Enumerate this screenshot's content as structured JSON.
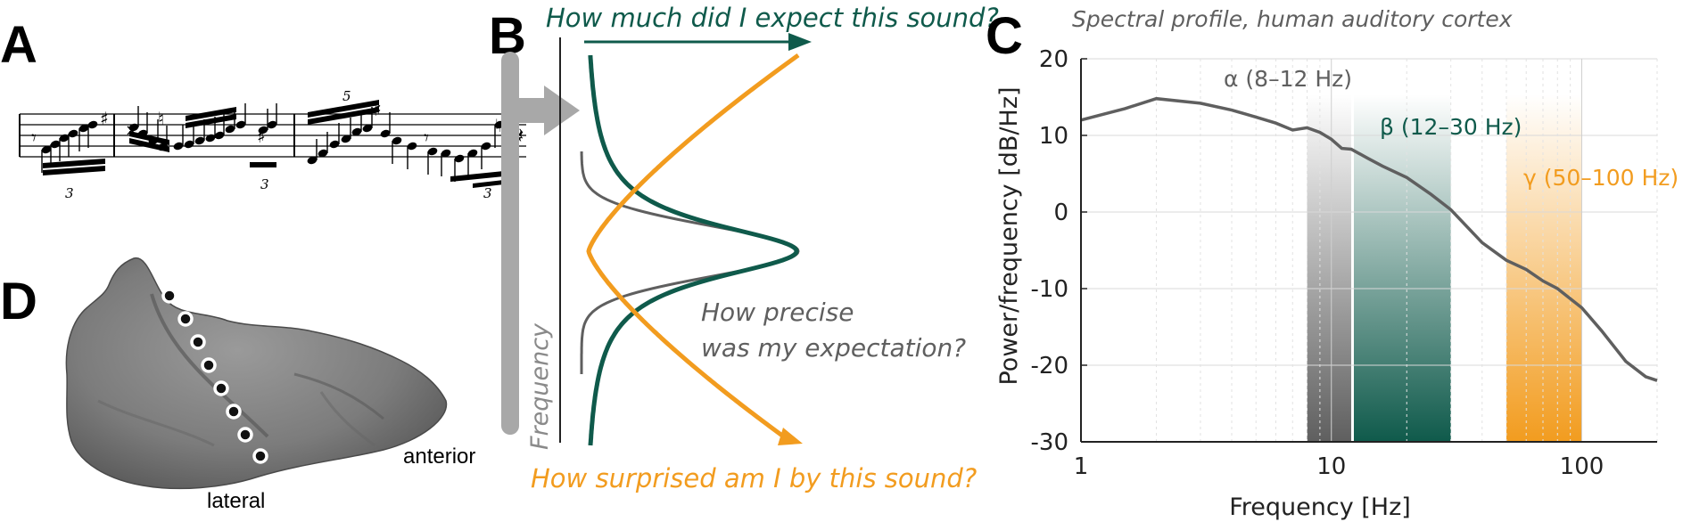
{
  "panels": {
    "a": {
      "letter": "A",
      "tuplet_3a": "3",
      "tuplet_3b": "3",
      "tuplet_5": "5",
      "tuplet_3c": "3"
    },
    "b": {
      "letter": "B",
      "top_label": "How much did I expect this sound?",
      "bottom_label": "How surprised am I by this sound?",
      "precision_label_1": "How precise",
      "precision_label_2": "was my expectation?",
      "axis_label": "Frequency"
    },
    "c": {
      "letter": "C",
      "title": "Spectral profile, human auditory cortex",
      "ylabel": "Power/frequency [dB/Hz]",
      "xlabel": "Frequency [Hz]"
    },
    "d": {
      "letter": "D",
      "label_anterior": "anterior",
      "label_lateral": "lateral"
    }
  },
  "colors": {
    "teal": "#0f5a4b",
    "orange": "#f29c1f",
    "gray": "#5f5f5f",
    "axis": "#222222"
  },
  "chart_data": {
    "type": "line",
    "title": "Spectral profile, human auditory cortex",
    "xlabel": "Frequency [Hz]",
    "ylabel": "Power/frequency [dB/Hz]",
    "xscale": "log",
    "xlim": [
      1,
      200
    ],
    "ylim": [
      -30,
      20
    ],
    "xticks": [
      1,
      10,
      100
    ],
    "yticks": [
      20,
      10,
      0,
      -10,
      -20,
      -30
    ],
    "grid": true,
    "bands": [
      {
        "name": "α (8–12 Hz)",
        "range": [
          8,
          12
        ],
        "color": "#5f5f5f"
      },
      {
        "name": "β (12–30 Hz)",
        "range": [
          12,
          30
        ],
        "color": "#0f5a4b"
      },
      {
        "name": "γ (50–100 Hz)",
        "range": [
          50,
          100
        ],
        "color": "#f29c1f"
      }
    ],
    "series": [
      {
        "x": [
          1,
          1.5,
          2,
          3,
          4,
          5,
          6,
          7,
          8,
          9,
          10,
          11,
          12,
          14,
          16,
          20,
          25,
          30,
          40,
          50,
          60,
          70,
          80,
          100,
          120,
          150,
          180,
          200
        ],
        "y": [
          12,
          13.5,
          14.8,
          14.2,
          13.3,
          12.4,
          11.6,
          10.7,
          11.0,
          10.4,
          9.5,
          8.3,
          8.2,
          7.0,
          6.0,
          4.5,
          2.3,
          0.3,
          -4.0,
          -6.3,
          -7.5,
          -9.0,
          -10.0,
          -12.5,
          -15.5,
          -19.5,
          -21.5,
          -22.0
        ]
      }
    ]
  }
}
